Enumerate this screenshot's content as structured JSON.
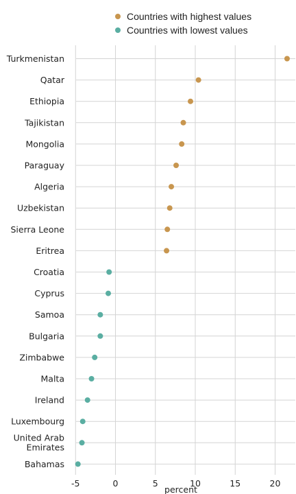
{
  "chart_data": {
    "type": "scatter",
    "orientation": "horizontal-dot",
    "xlabel": "percent",
    "xlim": [
      -5,
      22.5
    ],
    "xticks": [
      -5,
      0,
      5,
      10,
      15,
      20
    ],
    "grid": true,
    "legend_position": "top",
    "series": [
      {
        "name": "Countries with highest values",
        "color": "#c8964f",
        "categories": [
          "Turkmenistan",
          "Qatar",
          "Ethiopia",
          "Tajikistan",
          "Mongolia",
          "Paraguay",
          "Algeria",
          "Uzbekistan",
          "Sierra Leone",
          "Eritrea"
        ],
        "values": [
          21.5,
          10.4,
          9.4,
          8.5,
          8.3,
          7.6,
          7.0,
          6.8,
          6.5,
          6.4
        ]
      },
      {
        "name": "Countries with lowest values",
        "color": "#5aaea2",
        "categories": [
          "Croatia",
          "Cyprus",
          "Samoa",
          "Bulgaria",
          "Zimbabwe",
          "Malta",
          "Ireland",
          "Luxembourg",
          "United Arab Emirates",
          "Bahamas"
        ],
        "values": [
          -0.8,
          -0.9,
          -1.9,
          -1.9,
          -2.6,
          -3.0,
          -3.5,
          -4.1,
          -4.2,
          -4.7
        ]
      }
    ]
  }
}
